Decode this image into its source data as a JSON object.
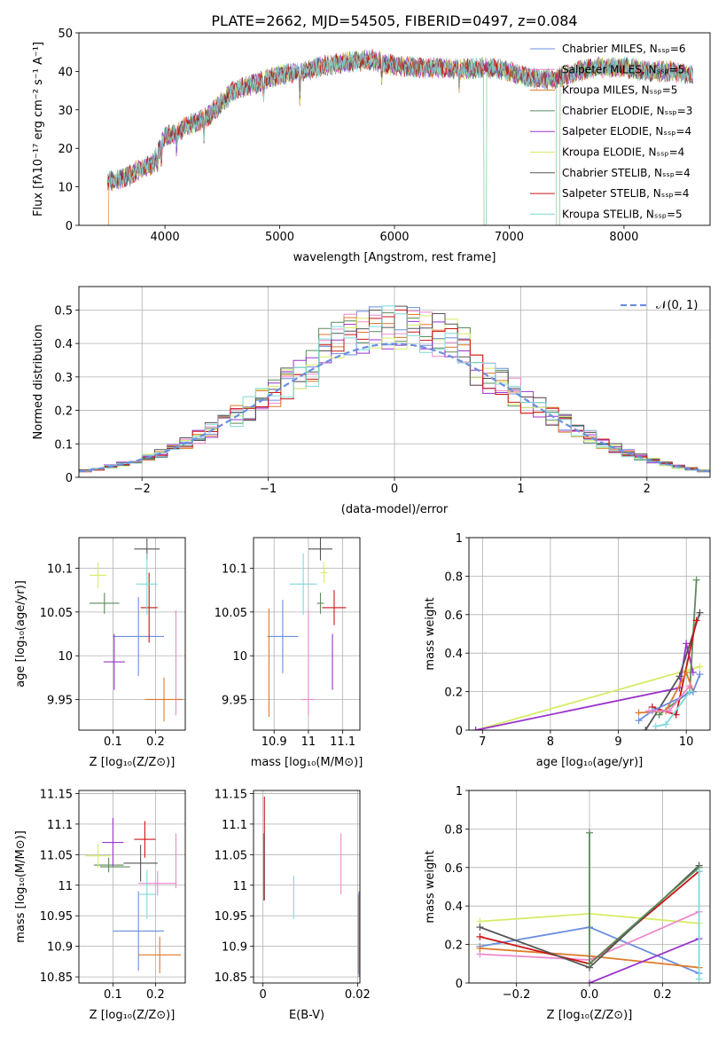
{
  "colors": {
    "Chabrier MILES": "#6a8fde",
    "Salpeter MILES": "#ee88cc",
    "Kroupa MILES": "#e0792a",
    "Chabrier ELODIE": "#5b8b5b",
    "Salpeter ELODIE": "#9a33cc",
    "Kroupa ELODIE": "#d6ec66",
    "Chabrier STELIB": "#555555",
    "Salpeter STELIB": "#cc1515",
    "Kroupa STELIB": "#7fd8dc",
    "gauss": "#6a8fde",
    "grid": "#b0b0b0"
  },
  "chart_data": [
    {
      "id": "spectrum",
      "type": "line",
      "title": "PLATE=2662, MJD=54505, FIBERID=0497, z=0.084",
      "xlabel": "wavelength [Angstrom, rest frame]",
      "ylabel": "Flux [fλ10⁻¹⁷ erg cm⁻² s⁻¹ A⁻¹]",
      "xlim": [
        3250,
        8750
      ],
      "ylim": [
        0,
        50
      ],
      "xticks": [
        4000,
        5000,
        6000,
        7000,
        8000
      ],
      "yticks": [
        0,
        10,
        20,
        30,
        40,
        50
      ],
      "grid": false,
      "legend_position": "upper-right",
      "legend": [
        {
          "label": "Chabrier MILES, Nₛₛₚ=6",
          "color_key": "Chabrier MILES"
        },
        {
          "label": "Salpeter MILES, Nₛₛₚ=5",
          "color_key": "Salpeter MILES"
        },
        {
          "label": "Kroupa MILES, Nₛₛₚ=5",
          "color_key": "Kroupa MILES"
        },
        {
          "label": "Chabrier ELODIE, Nₛₛₚ=3",
          "color_key": "Chabrier ELODIE"
        },
        {
          "label": "Salpeter ELODIE, Nₛₛₚ=4",
          "color_key": "Salpeter ELODIE"
        },
        {
          "label": "Kroupa ELODIE, Nₛₛₚ=4",
          "color_key": "Kroupa ELODIE"
        },
        {
          "label": "Chabrier STELIB, Nₛₛₚ=4",
          "color_key": "Chabrier STELIB"
        },
        {
          "label": "Salpeter STELIB, Nₛₛₚ=4",
          "color_key": "Salpeter STELIB"
        },
        {
          "label": "Kroupa STELIB, Nₛₛₚ=5",
          "color_key": "Kroupa STELIB"
        }
      ],
      "continuum": {
        "x": [
          3500,
          3600,
          3700,
          3800,
          3900,
          4000,
          4100,
          4200,
          4300,
          4400,
          4600,
          4800,
          5000,
          5200,
          5400,
          5600,
          5800,
          6000,
          6200,
          6400,
          6600,
          6800,
          7000,
          7200,
          7400,
          7600,
          7800,
          8000,
          8200,
          8400,
          8600
        ],
        "y": [
          11.5,
          12,
          13,
          15,
          16,
          23,
          24,
          26,
          27,
          29,
          35,
          37,
          39,
          40,
          41.5,
          42.5,
          43,
          41.5,
          41,
          41,
          40.5,
          41,
          40,
          38,
          38,
          40,
          41,
          41,
          40,
          40,
          39
        ]
      },
      "dips": [
        [
          3933,
          5
        ],
        [
          3968,
          4
        ],
        [
          4101,
          4
        ],
        [
          4340,
          5
        ],
        [
          4861,
          4
        ],
        [
          5175,
          8
        ],
        [
          5890,
          5
        ],
        [
          6563,
          4
        ]
      ],
      "gaps": [
        [
          6780,
          6800
        ],
        [
          7410,
          7440
        ]
      ]
    },
    {
      "id": "residuals",
      "type": "line",
      "xlabel": "(data-model)/error",
      "ylabel": "Normed distribution",
      "xlim": [
        -2.5,
        2.5
      ],
      "ylim": [
        0,
        0.57
      ],
      "xticks": [
        -2,
        -1,
        0,
        1,
        2
      ],
      "xtick_labels": [
        "−2",
        "−1",
        "0",
        "1",
        "2"
      ],
      "yticks": [
        0,
        0.1,
        0.2,
        0.3,
        0.4,
        0.5
      ],
      "grid": true,
      "legend_position": "upper-right",
      "gauss_label": "𝒩(0, 1)",
      "bin_width": 0.1
    },
    {
      "id": "age-vs-Z",
      "type": "scatter",
      "xlabel": "Z [log₁₀(Z/Z⊙)]",
      "ylabel": "age  [log₁₀(age/yr)]",
      "xlim": [
        0.02,
        0.27
      ],
      "ylim": [
        9.915,
        10.135
      ],
      "xticks": [
        0.1,
        0.2
      ],
      "yticks": [
        9.95,
        10.0,
        10.05,
        10.1
      ],
      "grid": true,
      "points": [
        {
          "key": "Chabrier MILES",
          "x": 0.16,
          "xe": 0.06,
          "y": 10.022,
          "ye": 0.045
        },
        {
          "key": "Salpeter MILES",
          "x": 0.248,
          "xe": 0.0,
          "y": 9.992,
          "ye": 0.06
        },
        {
          "key": "Kroupa MILES",
          "x": 0.22,
          "xe": 0.045,
          "y": 9.95,
          "ye": 0.025
        },
        {
          "key": "Chabrier ELODIE",
          "x": 0.08,
          "xe": 0.035,
          "y": 10.06,
          "ye": 0.012
        },
        {
          "key": "Salpeter ELODIE",
          "x": 0.103,
          "xe": 0.025,
          "y": 9.993,
          "ye": 0.032
        },
        {
          "key": "Kroupa ELODIE",
          "x": 0.065,
          "xe": 0.02,
          "y": 10.092,
          "ye": 0.015
        },
        {
          "key": "Chabrier STELIB",
          "x": 0.18,
          "xe": 0.03,
          "y": 10.122,
          "ye": 0.012
        },
        {
          "key": "Salpeter STELIB",
          "x": 0.185,
          "xe": 0.02,
          "y": 10.055,
          "ye": 0.04
        },
        {
          "key": "Kroupa STELIB",
          "x": 0.18,
          "xe": 0.025,
          "y": 10.082,
          "ye": 0.035
        }
      ]
    },
    {
      "id": "age-vs-mass",
      "type": "scatter",
      "xlabel": "mass [log₁₀(M/M⊙)]",
      "xlim": [
        10.84,
        11.15
      ],
      "ylim": [
        9.915,
        10.135
      ],
      "xticks": [
        10.9,
        11.0,
        11.1
      ],
      "yticks": [
        9.95,
        10.0,
        10.05,
        10.1
      ],
      "grid": true,
      "points": [
        {
          "key": "Chabrier MILES",
          "x": 10.925,
          "xe": 0.045,
          "y": 10.022,
          "ye": 0.042
        },
        {
          "key": "Salpeter MILES",
          "x": 11.0,
          "xe": 0.0,
          "y": 9.992,
          "ye": 0.06
        },
        {
          "key": "Kroupa MILES",
          "x": 10.885,
          "xe": 0.0,
          "y": 9.992,
          "ye": 0.062
        },
        {
          "key": "Chabrier ELODIE",
          "x": 11.035,
          "xe": 0.01,
          "y": 10.06,
          "ye": 0.012
        },
        {
          "key": "Salpeter ELODIE",
          "x": 11.07,
          "xe": 0.0,
          "y": 9.993,
          "ye": 0.032
        },
        {
          "key": "Kroupa ELODIE",
          "x": 11.045,
          "xe": 0.01,
          "y": 10.095,
          "ye": 0.012
        },
        {
          "key": "Chabrier STELIB",
          "x": 11.035,
          "xe": 0.035,
          "y": 10.122,
          "ye": 0.013
        },
        {
          "key": "Salpeter STELIB",
          "x": 11.075,
          "xe": 0.035,
          "y": 10.055,
          "ye": 0.02
        },
        {
          "key": "Kroupa STELIB",
          "x": 10.985,
          "xe": 0.04,
          "y": 10.082,
          "ye": 0.035
        },
        {
          "key": "Salpeter MILES",
          "x": 11.0,
          "xe": 0.02,
          "y": 9.95,
          "ye": 0.0
        }
      ]
    },
    {
      "id": "massweight-vs-age",
      "type": "line",
      "xlabel": "age  [log₁₀(age/yr)]",
      "ylabel": "mass weight",
      "xlim": [
        6.8,
        10.35
      ],
      "ylim": [
        0,
        1
      ],
      "xticks": [
        7,
        8,
        9,
        10
      ],
      "yticks": [
        0,
        0.2,
        0.4,
        0.6,
        0.8,
        1.0
      ],
      "grid": true,
      "series": [
        {
          "key": "Kroupa ELODIE",
          "x": [
            6.9,
            10.0,
            10.2
          ],
          "y": [
            0.0,
            0.31,
            0.33
          ]
        },
        {
          "key": "Salpeter ELODIE",
          "x": [
            6.9,
            9.9,
            10.0,
            10.1
          ],
          "y": [
            0.0,
            0.22,
            0.45,
            0.3
          ]
        },
        {
          "key": "Chabrier ELODIE",
          "x": [
            9.6,
            10.05,
            10.15
          ],
          "y": [
            0.08,
            0.2,
            0.78
          ]
        },
        {
          "key": "Chabrier STELIB",
          "x": [
            9.4,
            9.9,
            10.2
          ],
          "y": [
            0.0,
            0.28,
            0.61
          ]
        },
        {
          "key": "Salpeter STELIB",
          "x": [
            9.5,
            9.85,
            10.15
          ],
          "y": [
            0.12,
            0.08,
            0.57
          ]
        },
        {
          "key": "Kroupa MILES",
          "x": [
            9.3,
            9.7,
            10.0,
            10.1
          ],
          "y": [
            0.09,
            0.1,
            0.3,
            0.2
          ]
        },
        {
          "key": "Chabrier MILES",
          "x": [
            9.3,
            9.5,
            10.1,
            10.2
          ],
          "y": [
            0.05,
            0.1,
            0.2,
            0.29
          ]
        },
        {
          "key": "Kroupa STELIB",
          "x": [
            9.55,
            9.7,
            10.05
          ],
          "y": [
            0.02,
            0.03,
            0.2
          ]
        },
        {
          "key": "Salpeter MILES",
          "x": [
            9.45,
            9.75,
            10.05
          ],
          "y": [
            0.1,
            0.1,
            0.23
          ]
        }
      ]
    },
    {
      "id": "mass-vs-Z",
      "type": "scatter",
      "xlabel": "Z [log₁₀(Z/Z⊙)]",
      "ylabel": "mass [log₁₀(M/M⊙)]",
      "xlim": [
        0.02,
        0.27
      ],
      "ylim": [
        10.84,
        11.155
      ],
      "xticks": [
        0.1,
        0.2
      ],
      "yticks": [
        10.85,
        10.9,
        10.95,
        11.0,
        11.05,
        11.1,
        11.15
      ],
      "grid": true,
      "points": [
        {
          "key": "Chabrier MILES",
          "x": 0.16,
          "xe": 0.06,
          "y": 10.925,
          "ye": 0.065
        },
        {
          "key": "Salpeter MILES",
          "x": 0.205,
          "xe": 0.045,
          "y": 11.003,
          "ye": 0.02
        },
        {
          "key": "Kroupa MILES",
          "x": 0.21,
          "xe": 0.05,
          "y": 10.886,
          "ye": 0.03
        },
        {
          "key": "Chabrier ELODIE",
          "x": 0.09,
          "xe": 0.035,
          "y": 11.033,
          "ye": 0.012
        },
        {
          "key": "Salpeter ELODIE",
          "x": 0.1,
          "xe": 0.025,
          "y": 11.07,
          "ye": 0.04
        },
        {
          "key": "Kroupa ELODIE",
          "x": 0.065,
          "xe": 0.03,
          "y": 11.048,
          "ye": 0.02
        },
        {
          "key": "Chabrier STELIB",
          "x": 0.165,
          "xe": 0.04,
          "y": 11.036,
          "ye": 0.03
        },
        {
          "key": "Salpeter STELIB",
          "x": 0.175,
          "xe": 0.025,
          "y": 11.075,
          "ye": 0.03
        },
        {
          "key": "Kroupa STELIB",
          "x": 0.18,
          "xe": 0.02,
          "y": 10.985,
          "ye": 0.04
        },
        {
          "key": "Salpeter MILES",
          "x": 0.248,
          "xe": 0.0,
          "y": 11.04,
          "ye": 0.045
        },
        {
          "key": "Chabrier ELODIE",
          "x": 0.105,
          "xe": 0.035,
          "y": 11.03,
          "ye": 0.0
        }
      ]
    },
    {
      "id": "mass-vs-EBV",
      "type": "scatter",
      "xlabel": "E(B-V)",
      "xlim": [
        -0.002,
        0.0205
      ],
      "ylim": [
        10.84,
        11.155
      ],
      "xticks": [
        0.0,
        0.02
      ],
      "yticks": [
        10.85,
        10.9,
        10.95,
        11.0,
        11.05,
        11.1,
        11.15
      ],
      "grid": true,
      "points": [
        {
          "key": "Salpeter STELIB",
          "x": 0.0003,
          "xe": 0.0,
          "y": 11.06,
          "ye": 0.085
        },
        {
          "key": "Chabrier STELIB",
          "x": 0.0002,
          "xe": 0.0,
          "y": 11.03,
          "ye": 0.055
        },
        {
          "key": "Kroupa STELIB",
          "x": 0.0065,
          "xe": 0.0,
          "y": 10.98,
          "ye": 0.035
        },
        {
          "key": "Salpeter MILES",
          "x": 0.0165,
          "xe": 0.0,
          "y": 11.035,
          "ye": 0.05
        },
        {
          "key": "Kroupa MILES",
          "x": 0.0202,
          "xe": 0.0,
          "y": 10.92,
          "ye": 0.065
        },
        {
          "key": "Chabrier MILES",
          "x": 0.0203,
          "xe": 0.0,
          "y": 10.92,
          "ye": 0.07
        }
      ]
    },
    {
      "id": "massweight-vs-Z",
      "type": "line",
      "xlabel": "Z [log₁₀(Z/Z⊙)]",
      "ylabel": "mass weight",
      "xlim": [
        -0.33,
        0.33
      ],
      "ylim": [
        0,
        1
      ],
      "xticks": [
        -0.2,
        0.0,
        0.2
      ],
      "xtick_labels": [
        "−0.2",
        "0.0",
        "0.2"
      ],
      "yticks": [
        0,
        0.2,
        0.4,
        0.6,
        0.8,
        1.0
      ],
      "grid": true,
      "series": [
        {
          "key": "Kroupa ELODIE",
          "x": [
            -0.3,
            0.0,
            0.3
          ],
          "y": [
            0.32,
            0.36,
            0.31
          ]
        },
        {
          "key": "Chabrier MILES",
          "x": [
            -0.3,
            0.0,
            0.3
          ],
          "y": [
            0.19,
            0.29,
            0.05
          ]
        },
        {
          "key": "Salpeter MILES",
          "x": [
            -0.3,
            0.0,
            0.3
          ],
          "y": [
            0.15,
            0.12,
            0.37
          ]
        },
        {
          "key": "Kroupa MILES",
          "x": [
            -0.3,
            0.0,
            0.3
          ],
          "y": [
            0.18,
            0.14,
            0.08
          ]
        },
        {
          "key": "Salpeter STELIB",
          "x": [
            -0.3,
            0.0,
            0.3
          ],
          "y": [
            0.24,
            0.1,
            0.58
          ]
        },
        {
          "key": "Chabrier STELIB",
          "x": [
            -0.3,
            0.0,
            0.3
          ],
          "y": [
            0.29,
            0.08,
            0.61
          ]
        },
        {
          "key": "Chabrier ELODIE",
          "x": [
            0.0,
            0.0,
            0.3
          ],
          "y": [
            0.78,
            0.1,
            0.6
          ]
        },
        {
          "key": "Salpeter ELODIE",
          "x": [
            0.0,
            0.3
          ],
          "y": [
            0.0,
            0.23
          ]
        },
        {
          "key": "Kroupa STELIB",
          "x": [
            0.3,
            0.3
          ],
          "y": [
            0.02,
            0.58
          ]
        }
      ]
    }
  ]
}
